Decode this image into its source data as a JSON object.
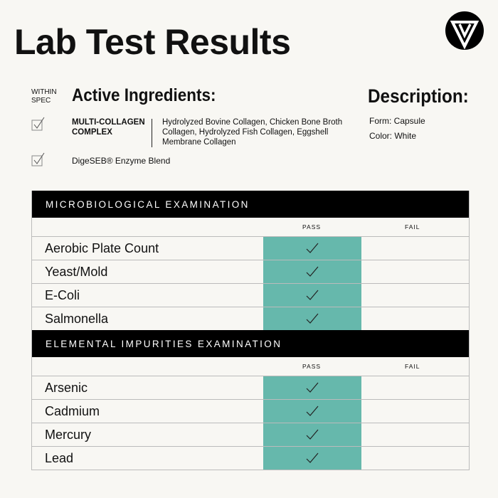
{
  "title": "Lab Test Results",
  "logo": "brand-v-triangle-logo",
  "within_spec": [
    "WITHIN",
    "SPEC"
  ],
  "active_ingredients": {
    "heading": "Active Ingredients:",
    "items": [
      {
        "name_line1": "MULTI-COLLAGEN",
        "name_line2": "COMPLEX",
        "detail": "Hydrolyzed Bovine Collagen, Chicken Bone Broth Collagen, Hydrolyzed Fish Collagen, Eggshell Membrane Collagen"
      },
      {
        "name": "DigeSEB® Enzyme Blend"
      }
    ]
  },
  "description": {
    "heading": "Description:",
    "form": "Form: Capsule",
    "color": "Color: White"
  },
  "colors": {
    "pass_fill": "#66b8ac",
    "header_bg": "#000000",
    "background": "#f8f7f3"
  },
  "sections": [
    {
      "title": "MICROBIOLOGICAL EXAMINATION",
      "pass_label": "PASS",
      "fail_label": "FAIL",
      "rows": [
        {
          "label": "Aerobic Plate Count",
          "result": "pass"
        },
        {
          "label": "Yeast/Mold",
          "result": "pass"
        },
        {
          "label": "E-Coli",
          "result": "pass"
        },
        {
          "label": "Salmonella",
          "result": "pass"
        }
      ]
    },
    {
      "title": "ELEMENTAL IMPURITIES EXAMINATION",
      "pass_label": "PASS",
      "fail_label": "FAIL",
      "rows": [
        {
          "label": "Arsenic",
          "result": "pass"
        },
        {
          "label": "Cadmium",
          "result": "pass"
        },
        {
          "label": "Mercury",
          "result": "pass"
        },
        {
          "label": "Lead",
          "result": "pass"
        }
      ]
    }
  ]
}
